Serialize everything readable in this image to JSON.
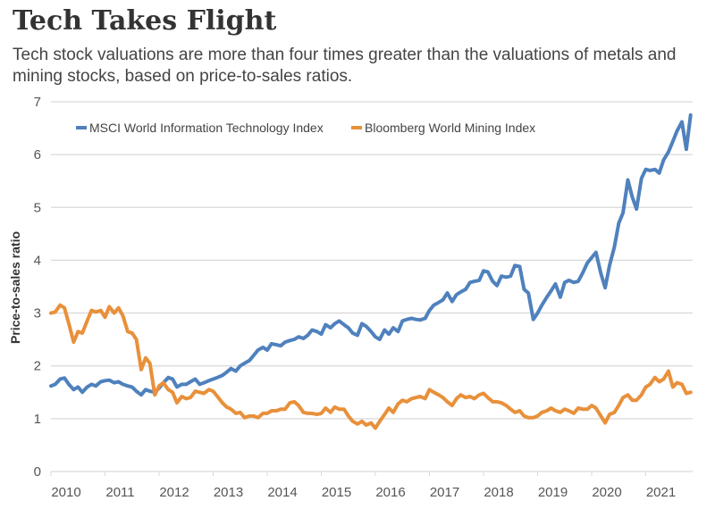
{
  "chart_data": {
    "type": "line",
    "title": "Tech Takes Flight",
    "subtitle": "Tech stock valuations are more than four times greater than the valuations of metals and mining stocks, based on price-to-sales ratios.",
    "xlabel": "",
    "ylabel": "Price-to-sales ratio",
    "ylim": [
      0,
      7
    ],
    "xlim": [
      2010,
      2021.85
    ],
    "yticks": [
      "0",
      "1",
      "2",
      "3",
      "4",
      "5",
      "6",
      "7"
    ],
    "xticks": [
      "2010",
      "2011",
      "2012",
      "2013",
      "2014",
      "2015",
      "2016",
      "2017",
      "2018",
      "2019",
      "2020",
      "2021"
    ],
    "grid": true,
    "legend_position": "top-left",
    "series": [
      {
        "name": "MSCI World Information Technology Index",
        "color": "#4f81bd",
        "x": [
          2010.0,
          2010.08,
          2010.17,
          2010.25,
          2010.33,
          2010.42,
          2010.5,
          2010.58,
          2010.67,
          2010.75,
          2010.83,
          2010.92,
          2011.0,
          2011.08,
          2011.17,
          2011.25,
          2011.33,
          2011.42,
          2011.5,
          2011.58,
          2011.67,
          2011.75,
          2011.83,
          2011.92,
          2012.0,
          2012.08,
          2012.17,
          2012.25,
          2012.33,
          2012.42,
          2012.5,
          2012.58,
          2012.67,
          2012.75,
          2012.83,
          2012.92,
          2013.0,
          2013.08,
          2013.17,
          2013.25,
          2013.33,
          2013.42,
          2013.5,
          2013.58,
          2013.67,
          2013.75,
          2013.83,
          2013.92,
          2014.0,
          2014.08,
          2014.17,
          2014.25,
          2014.33,
          2014.42,
          2014.5,
          2014.58,
          2014.67,
          2014.75,
          2014.83,
          2014.92,
          2015.0,
          2015.08,
          2015.17,
          2015.25,
          2015.33,
          2015.42,
          2015.5,
          2015.58,
          2015.67,
          2015.75,
          2015.83,
          2015.92,
          2016.0,
          2016.08,
          2016.17,
          2016.25,
          2016.33,
          2016.42,
          2016.5,
          2016.58,
          2016.67,
          2016.75,
          2016.83,
          2016.92,
          2017.0,
          2017.08,
          2017.17,
          2017.25,
          2017.33,
          2017.42,
          2017.5,
          2017.58,
          2017.67,
          2017.75,
          2017.83,
          2017.92,
          2018.0,
          2018.08,
          2018.17,
          2018.25,
          2018.33,
          2018.42,
          2018.5,
          2018.58,
          2018.67,
          2018.75,
          2018.83,
          2018.92,
          2019.0,
          2019.08,
          2019.17,
          2019.25,
          2019.33,
          2019.42,
          2019.5,
          2019.58,
          2019.67,
          2019.75,
          2019.83,
          2019.92,
          2020.0,
          2020.08,
          2020.17,
          2020.25,
          2020.33,
          2020.42,
          2020.5,
          2020.58,
          2020.67,
          2020.75,
          2020.83,
          2020.92,
          2021.0,
          2021.08,
          2021.17,
          2021.25,
          2021.33,
          2021.42,
          2021.5,
          2021.58,
          2021.67,
          2021.75,
          2021.83
        ],
        "values": [
          1.62,
          1.65,
          1.75,
          1.77,
          1.65,
          1.55,
          1.6,
          1.5,
          1.6,
          1.65,
          1.62,
          1.7,
          1.72,
          1.73,
          1.68,
          1.7,
          1.65,
          1.62,
          1.6,
          1.52,
          1.45,
          1.55,
          1.52,
          1.5,
          1.58,
          1.68,
          1.78,
          1.75,
          1.6,
          1.65,
          1.65,
          1.7,
          1.75,
          1.65,
          1.68,
          1.72,
          1.75,
          1.78,
          1.82,
          1.88,
          1.95,
          1.9,
          2.0,
          2.05,
          2.1,
          2.2,
          2.3,
          2.35,
          2.3,
          2.42,
          2.4,
          2.38,
          2.45,
          2.48,
          2.5,
          2.55,
          2.52,
          2.58,
          2.68,
          2.65,
          2.6,
          2.78,
          2.72,
          2.8,
          2.85,
          2.78,
          2.72,
          2.62,
          2.58,
          2.8,
          2.75,
          2.65,
          2.55,
          2.5,
          2.68,
          2.6,
          2.72,
          2.65,
          2.85,
          2.88,
          2.9,
          2.88,
          2.87,
          2.9,
          3.05,
          3.15,
          3.2,
          3.25,
          3.38,
          3.22,
          3.35,
          3.4,
          3.45,
          3.58,
          3.6,
          3.62,
          3.8,
          3.78,
          3.6,
          3.52,
          3.7,
          3.68,
          3.7,
          3.9,
          3.88,
          3.45,
          3.38,
          2.88,
          3.0,
          3.15,
          3.3,
          3.42,
          3.55,
          3.3,
          3.58,
          3.62,
          3.58,
          3.6,
          3.75,
          3.95,
          4.05,
          4.15,
          3.75,
          3.48,
          3.9,
          4.25,
          4.7,
          4.9,
          5.52,
          5.2,
          4.97,
          5.55,
          5.72,
          5.7,
          5.72,
          5.65,
          5.9,
          6.05,
          6.25,
          6.45,
          6.62,
          6.1,
          6.75
        ]
      },
      {
        "name": "Bloomberg World Mining Index",
        "color": "#e8903a",
        "x": [
          2010.0,
          2010.08,
          2010.17,
          2010.25,
          2010.33,
          2010.42,
          2010.5,
          2010.58,
          2010.67,
          2010.75,
          2010.83,
          2010.92,
          2011.0,
          2011.08,
          2011.17,
          2011.25,
          2011.33,
          2011.42,
          2011.5,
          2011.58,
          2011.67,
          2011.75,
          2011.83,
          2011.92,
          2012.0,
          2012.08,
          2012.17,
          2012.25,
          2012.33,
          2012.42,
          2012.5,
          2012.58,
          2012.67,
          2012.75,
          2012.83,
          2012.92,
          2013.0,
          2013.08,
          2013.17,
          2013.25,
          2013.33,
          2013.42,
          2013.5,
          2013.58,
          2013.67,
          2013.75,
          2013.83,
          2013.92,
          2014.0,
          2014.08,
          2014.17,
          2014.25,
          2014.33,
          2014.42,
          2014.5,
          2014.58,
          2014.67,
          2014.75,
          2014.83,
          2014.92,
          2015.0,
          2015.08,
          2015.17,
          2015.25,
          2015.33,
          2015.42,
          2015.5,
          2015.58,
          2015.67,
          2015.75,
          2015.83,
          2015.92,
          2016.0,
          2016.08,
          2016.17,
          2016.25,
          2016.33,
          2016.42,
          2016.5,
          2016.58,
          2016.67,
          2016.75,
          2016.83,
          2016.92,
          2017.0,
          2017.08,
          2017.17,
          2017.25,
          2017.33,
          2017.42,
          2017.5,
          2017.58,
          2017.67,
          2017.75,
          2017.83,
          2017.92,
          2018.0,
          2018.08,
          2018.17,
          2018.25,
          2018.33,
          2018.42,
          2018.5,
          2018.58,
          2018.67,
          2018.75,
          2018.83,
          2018.92,
          2019.0,
          2019.08,
          2019.17,
          2019.25,
          2019.33,
          2019.42,
          2019.5,
          2019.58,
          2019.67,
          2019.75,
          2019.83,
          2019.92,
          2020.0,
          2020.08,
          2020.17,
          2020.25,
          2020.33,
          2020.42,
          2020.5,
          2020.58,
          2020.67,
          2020.75,
          2020.83,
          2020.92,
          2021.0,
          2021.08,
          2021.17,
          2021.25,
          2021.33,
          2021.42,
          2021.5,
          2021.58,
          2021.67,
          2021.75,
          2021.83
        ],
        "values": [
          3.0,
          3.02,
          3.15,
          3.1,
          2.8,
          2.45,
          2.65,
          2.62,
          2.85,
          3.05,
          3.02,
          3.05,
          2.92,
          3.12,
          3.0,
          3.1,
          2.95,
          2.65,
          2.62,
          2.5,
          1.93,
          2.15,
          2.05,
          1.45,
          1.62,
          1.68,
          1.55,
          1.5,
          1.3,
          1.42,
          1.38,
          1.4,
          1.52,
          1.5,
          1.48,
          1.55,
          1.52,
          1.42,
          1.3,
          1.22,
          1.18,
          1.1,
          1.12,
          1.02,
          1.05,
          1.05,
          1.02,
          1.1,
          1.1,
          1.15,
          1.15,
          1.18,
          1.18,
          1.3,
          1.32,
          1.25,
          1.12,
          1.1,
          1.1,
          1.08,
          1.1,
          1.2,
          1.12,
          1.22,
          1.18,
          1.18,
          1.05,
          0.95,
          0.9,
          0.95,
          0.88,
          0.92,
          0.82,
          0.95,
          1.08,
          1.2,
          1.12,
          1.28,
          1.35,
          1.32,
          1.38,
          1.4,
          1.42,
          1.38,
          1.55,
          1.5,
          1.45,
          1.4,
          1.32,
          1.25,
          1.38,
          1.45,
          1.4,
          1.42,
          1.38,
          1.45,
          1.48,
          1.4,
          1.32,
          1.32,
          1.3,
          1.25,
          1.18,
          1.12,
          1.15,
          1.05,
          1.02,
          1.02,
          1.05,
          1.12,
          1.15,
          1.2,
          1.15,
          1.12,
          1.18,
          1.15,
          1.1,
          1.2,
          1.18,
          1.18,
          1.25,
          1.2,
          1.05,
          0.92,
          1.08,
          1.12,
          1.25,
          1.4,
          1.45,
          1.35,
          1.35,
          1.45,
          1.6,
          1.65,
          1.78,
          1.7,
          1.75,
          1.9,
          1.6,
          1.68,
          1.65,
          1.48,
          1.5
        ]
      }
    ]
  }
}
